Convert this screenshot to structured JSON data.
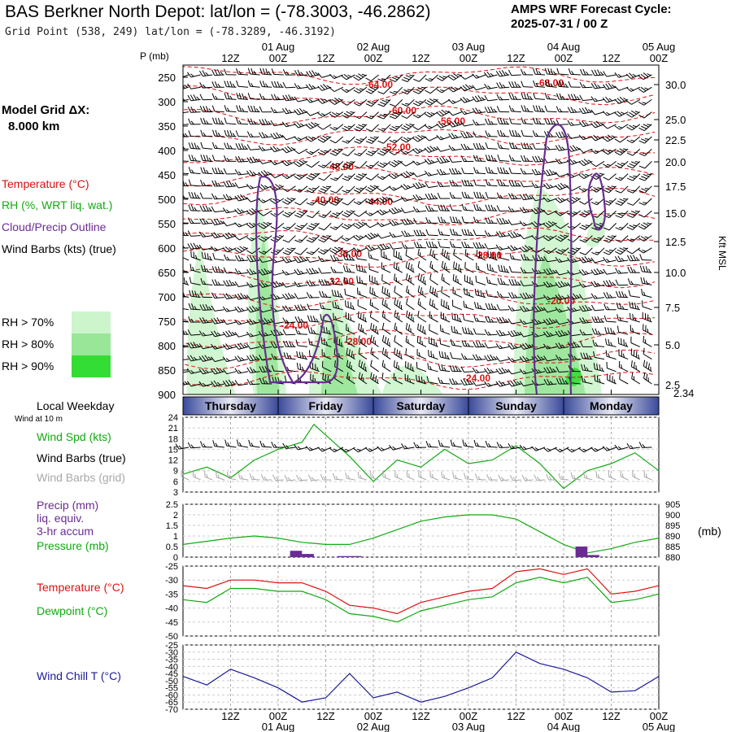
{
  "header": {
    "title": "BAS Berkner North Depot:  lat/lon = (-78.3003, -46.2862)",
    "grid_point": "Grid Point (538, 249) lat/lon = (-78.3289, -46.3192)",
    "cycle_line1": "AMPS WRF Forecast Cycle:",
    "cycle_line2": "2025-07-31 / 00  Z"
  },
  "sidebar": {
    "model_grid_label": "Model Grid ΔX:",
    "model_grid_value": "8.000 km",
    "legend_temperature": "Temperature (°C)",
    "legend_rh": "RH (%, WRT liq. wat.)",
    "legend_cloud": "Cloud/Precip Outline",
    "legend_wind": "Wind Barbs (kts) (true)",
    "rh_70": "RH > 70%",
    "rh_80": "RH > 80%",
    "rh_90": "RH > 90%",
    "local_weekday": "Local Weekday",
    "wind_at_10m": "Wind at 10 m",
    "wind_spd": "Wind Spd (kts)",
    "wind_barbs_true": "Wind Barbs (true)",
    "wind_barbs_grid": "Wind Barbs (grid)",
    "precip_1": "Precip (mm)",
    "precip_2": "liq. equiv.",
    "precip_3": "3-hr accum",
    "pressure": "Pressure (mb)",
    "temperature": "Temperature (°C)",
    "dewpoint": "Dewpoint (°C)",
    "wind_chill": "Wind Chill T (°C)",
    "p_axis_unit": "P (mb)",
    "kft_msl": "Kft MSL",
    "mb_unit": "(mb)",
    "surface_kft": "2.34"
  },
  "colors": {
    "temperature": "#dd1111",
    "rh": "#11aa11",
    "cloud": "#6a2c91",
    "wind_gray": "#a8a8a8",
    "wind_chill": "#1a1a99",
    "rh70": "#ccf5cc",
    "rh80": "#99e699",
    "rh90": "#33dd33"
  },
  "chart_data": [
    {
      "type": "area",
      "name": "cross-section",
      "time_ticks": [
        "12Z",
        "00Z",
        "12Z",
        "00Z",
        "12Z",
        "00Z",
        "12Z",
        "00Z",
        "12Z",
        "00Z"
      ],
      "date_ticks": [
        "01 Aug",
        "02 Aug",
        "03 Aug",
        "04 Aug",
        "05 Aug"
      ],
      "x_hours": [
        0,
        120
      ],
      "pressure_levels": [
        250,
        300,
        350,
        400,
        450,
        500,
        550,
        600,
        650,
        700,
        750,
        800,
        850,
        900
      ],
      "height_kft": [
        "30.0",
        "25.0",
        "22.5",
        "20.0",
        "17.5",
        "15.0",
        "12.5",
        "10.0",
        "7.5",
        "5.0",
        "2.5"
      ],
      "temperature_labels": [
        "-64.00",
        "-68.00",
        "-60.00",
        "-56.00",
        "-52.00",
        "-48.00",
        "-40.00",
        "-44.00",
        "-36.00",
        "-32.00",
        "-28.00",
        "-20.00",
        "-24.00",
        "-28.00",
        "-24.00"
      ],
      "weekdays": [
        "Thursday",
        "Friday",
        "Saturday",
        "Sunday",
        "Monday"
      ]
    },
    {
      "type": "line",
      "name": "wind_speed_kts",
      "ylim": [
        3,
        24
      ],
      "yticks": [
        "24",
        "21",
        "18",
        "15",
        "12",
        "9",
        "6",
        "3"
      ],
      "x": [
        0,
        6,
        12,
        18,
        24,
        30,
        33,
        36,
        42,
        48,
        54,
        60,
        66,
        72,
        78,
        84,
        90,
        96,
        102,
        108,
        114,
        120
      ],
      "values": [
        8,
        10,
        7,
        12,
        15,
        17,
        22,
        19,
        13,
        6,
        12,
        10,
        15,
        11,
        12,
        16,
        11,
        4,
        9,
        11,
        14,
        9
      ]
    },
    {
      "type": "line",
      "name": "pressure_mb",
      "ylim": [
        880,
        905
      ],
      "yticks": [
        "905",
        "900",
        "895",
        "890",
        "885",
        "880"
      ],
      "precip_yticks": [
        "2.5",
        "2",
        "1.5",
        "1",
        "0.5",
        "0"
      ],
      "x": [
        0,
        6,
        12,
        18,
        24,
        30,
        36,
        42,
        48,
        54,
        60,
        66,
        72,
        78,
        84,
        90,
        96,
        102,
        108,
        114,
        120
      ],
      "values": [
        886,
        887.5,
        889,
        890,
        889,
        887,
        886,
        886,
        889,
        893,
        897,
        899,
        900,
        900,
        898,
        892,
        886,
        882,
        884,
        887,
        889
      ],
      "precip": [
        {
          "x": [
            27,
            30
          ],
          "mm": 0.3
        },
        {
          "x": [
            30,
            33
          ],
          "mm": 0.15
        },
        {
          "x": [
            39,
            42
          ],
          "mm": 0.05
        },
        {
          "x": [
            42,
            45
          ],
          "mm": 0.05
        },
        {
          "x": [
            99,
            102
          ],
          "mm": 0.5
        },
        {
          "x": [
            102,
            105
          ],
          "mm": 0.1
        }
      ]
    },
    {
      "type": "line",
      "name": "temperature_dewpoint",
      "ylim": [
        -50,
        -25
      ],
      "yticks": [
        "-25",
        "-30",
        "-35",
        "-40",
        "-45",
        "-50"
      ],
      "x": [
        0,
        6,
        12,
        18,
        24,
        30,
        36,
        42,
        48,
        54,
        60,
        66,
        72,
        78,
        84,
        90,
        96,
        102,
        108,
        114,
        120
      ],
      "series": [
        {
          "name": "Temperature",
          "values": [
            -32,
            -33,
            -30,
            -30,
            -31,
            -31,
            -34,
            -39,
            -40,
            -42,
            -38,
            -36,
            -34,
            -33,
            -27,
            -26,
            -28,
            -26,
            -35,
            -34,
            -32
          ]
        },
        {
          "name": "Dewpoint",
          "values": [
            -37,
            -38,
            -33,
            -33,
            -34,
            -34,
            -37,
            -42,
            -43,
            -45,
            -41,
            -39,
            -37,
            -36,
            -31,
            -29,
            -31,
            -29,
            -38,
            -37,
            -35
          ]
        }
      ]
    },
    {
      "type": "line",
      "name": "wind_chill",
      "ylim": [
        -70,
        -25
      ],
      "yticks": [
        "-25",
        "-30",
        "-35",
        "-40",
        "-45",
        "-50",
        "-55",
        "-60",
        "-65",
        "-70"
      ],
      "x": [
        0,
        6,
        12,
        18,
        24,
        30,
        36,
        42,
        48,
        54,
        60,
        66,
        72,
        78,
        84,
        90,
        96,
        102,
        108,
        114,
        120
      ],
      "values": [
        -47,
        -53,
        -42,
        -48,
        -55,
        -65,
        -62,
        -45,
        -62,
        -58,
        -65,
        -61,
        -55,
        -48,
        -30,
        -38,
        -42,
        -48,
        -58,
        -57,
        -47
      ]
    }
  ]
}
